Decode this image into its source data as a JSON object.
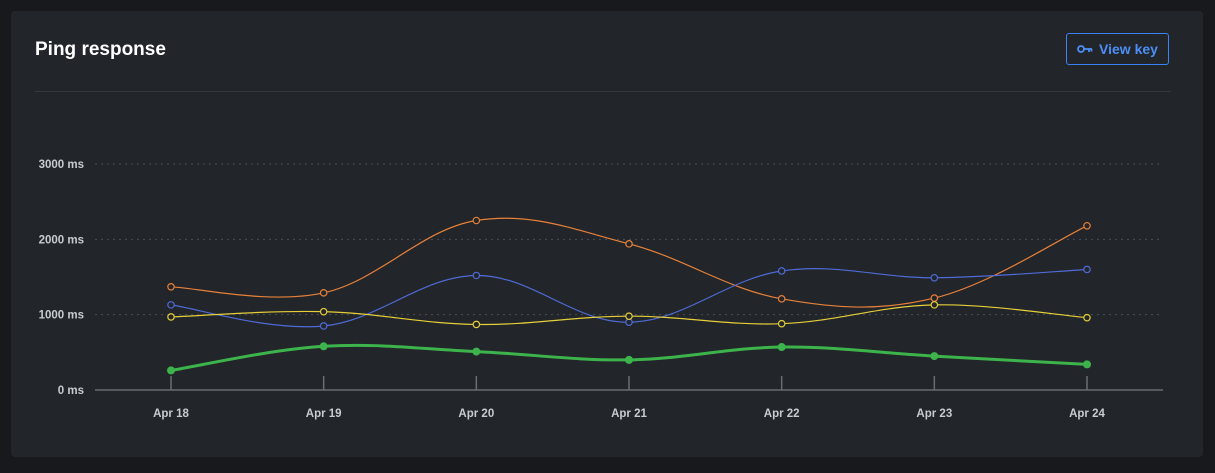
{
  "header": {
    "title": "Ping response",
    "view_key_label": "View key"
  },
  "icons": {
    "key": "key-icon"
  },
  "chart_data": {
    "type": "line",
    "x": [
      "Apr 18",
      "Apr 19",
      "Apr 20",
      "Apr 21",
      "Apr 22",
      "Apr 23",
      "Apr 24"
    ],
    "y_ticks": [
      "0 ms",
      "1000 ms",
      "2000 ms",
      "3000 ms"
    ],
    "ylim": [
      0,
      3000
    ],
    "grid": true,
    "series": [
      {
        "color": "#e8813a",
        "values": [
          1370,
          1290,
          2250,
          1940,
          1210,
          1220,
          2180
        ]
      },
      {
        "color": "#4f6bd8",
        "values": [
          1130,
          850,
          1520,
          900,
          1580,
          1490,
          1600
        ]
      },
      {
        "color": "#e6cf3a",
        "values": [
          970,
          1040,
          870,
          980,
          880,
          1130,
          960
        ]
      },
      {
        "color": "#3cb44b",
        "values": [
          260,
          580,
          510,
          400,
          570,
          450,
          340
        ]
      }
    ]
  }
}
